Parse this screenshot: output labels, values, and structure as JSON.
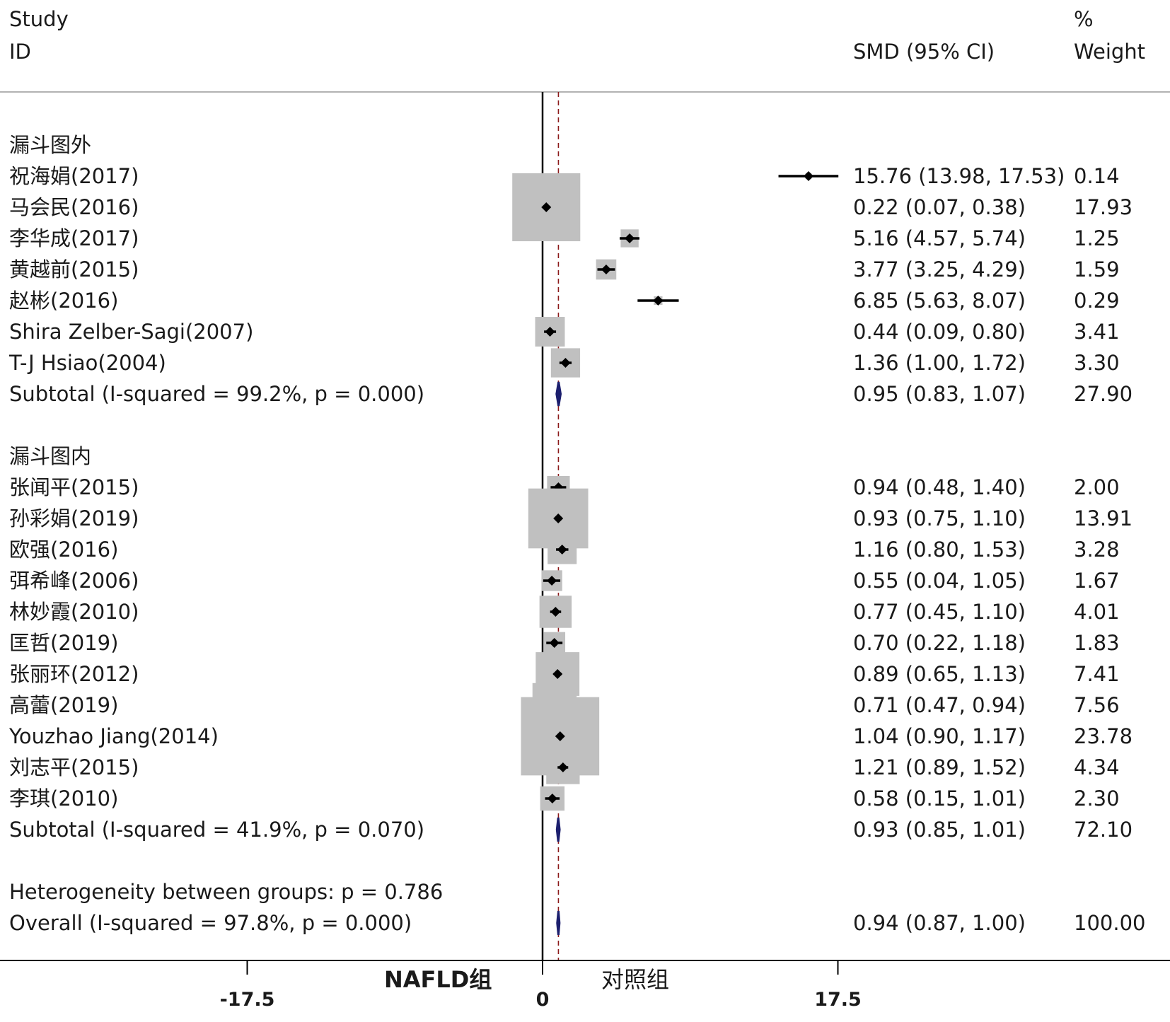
{
  "headers": {
    "study_line1": "Study",
    "study_line2": "ID",
    "smd": "SMD (95% CI)",
    "weight_line1": "%",
    "weight_line2": "Weight"
  },
  "chart_data": {
    "type": "forest",
    "measure": "SMD",
    "xaxis": {
      "ticks": [
        -17.5,
        0,
        17.5
      ],
      "tick_labels": [
        "-17.5",
        "0",
        "17.5"
      ],
      "left_label": "NAFLD组",
      "right_label": "对照组"
    },
    "overall_line": 0.94,
    "rows": [
      {
        "kind": "group",
        "label": "漏斗图外"
      },
      {
        "kind": "study",
        "label": "祝海娟(2017)",
        "est": 15.76,
        "lo": 13.98,
        "hi": 17.53,
        "ci": "15.76 (13.98, 17.53)",
        "weight": 0.14,
        "weight_text": "0.14"
      },
      {
        "kind": "study",
        "label": "马会民(2016)",
        "est": 0.22,
        "lo": 0.07,
        "hi": 0.38,
        "ci": "0.22 (0.07, 0.38)",
        "weight": 17.93,
        "weight_text": "17.93"
      },
      {
        "kind": "study",
        "label": "李华成(2017)",
        "est": 5.16,
        "lo": 4.57,
        "hi": 5.74,
        "ci": "5.16 (4.57, 5.74)",
        "weight": 1.25,
        "weight_text": "1.25"
      },
      {
        "kind": "study",
        "label": "黄越前(2015)",
        "est": 3.77,
        "lo": 3.25,
        "hi": 4.29,
        "ci": "3.77 (3.25, 4.29)",
        "weight": 1.59,
        "weight_text": "1.59"
      },
      {
        "kind": "study",
        "label": "赵彬(2016)",
        "est": 6.85,
        "lo": 5.63,
        "hi": 8.07,
        "ci": "6.85 (5.63, 8.07)",
        "weight": 0.29,
        "weight_text": "0.29"
      },
      {
        "kind": "study",
        "label": "Shira Zelber-Sagi(2007)",
        "est": 0.44,
        "lo": 0.09,
        "hi": 0.8,
        "ci": "0.44 (0.09, 0.80)",
        "weight": 3.41,
        "weight_text": "3.41"
      },
      {
        "kind": "study",
        "label": "T-J Hsiao(2004)",
        "est": 1.36,
        "lo": 1.0,
        "hi": 1.72,
        "ci": "1.36 (1.00, 1.72)",
        "weight": 3.3,
        "weight_text": "3.30"
      },
      {
        "kind": "subtotal",
        "label": "Subtotal  (I-squared = 99.2%, p = 0.000)",
        "est": 0.95,
        "lo": 0.83,
        "hi": 1.07,
        "ci": "0.95 (0.83, 1.07)",
        "weight": 27.9,
        "weight_text": "27.90"
      },
      {
        "kind": "blank"
      },
      {
        "kind": "group",
        "label": "漏斗图内"
      },
      {
        "kind": "study",
        "label": "张闻平(2015)",
        "est": 0.94,
        "lo": 0.48,
        "hi": 1.4,
        "ci": "0.94 (0.48, 1.40)",
        "weight": 2.0,
        "weight_text": "2.00"
      },
      {
        "kind": "study",
        "label": "孙彩娟(2019)",
        "est": 0.93,
        "lo": 0.75,
        "hi": 1.1,
        "ci": "0.93 (0.75, 1.10)",
        "weight": 13.91,
        "weight_text": "13.91"
      },
      {
        "kind": "study",
        "label": "欧强(2016)",
        "est": 1.16,
        "lo": 0.8,
        "hi": 1.53,
        "ci": "1.16 (0.80, 1.53)",
        "weight": 3.28,
        "weight_text": "3.28"
      },
      {
        "kind": "study",
        "label": "弭希峰(2006)",
        "est": 0.55,
        "lo": 0.04,
        "hi": 1.05,
        "ci": "0.55 (0.04, 1.05)",
        "weight": 1.67,
        "weight_text": "1.67"
      },
      {
        "kind": "study",
        "label": "林妙霞(2010)",
        "est": 0.77,
        "lo": 0.45,
        "hi": 1.1,
        "ci": "0.77 (0.45, 1.10)",
        "weight": 4.01,
        "weight_text": "4.01"
      },
      {
        "kind": "study",
        "label": "匡哲(2019)",
        "est": 0.7,
        "lo": 0.22,
        "hi": 1.18,
        "ci": "0.70 (0.22, 1.18)",
        "weight": 1.83,
        "weight_text": "1.83"
      },
      {
        "kind": "study",
        "label": "张丽环(2012)",
        "est": 0.89,
        "lo": 0.65,
        "hi": 1.13,
        "ci": "0.89 (0.65, 1.13)",
        "weight": 7.41,
        "weight_text": "7.41"
      },
      {
        "kind": "study",
        "label": "高蕾(2019)",
        "est": 0.71,
        "lo": 0.47,
        "hi": 0.94,
        "ci": "0.71 (0.47, 0.94)",
        "weight": 7.56,
        "weight_text": "7.56"
      },
      {
        "kind": "study",
        "label": "Youzhao Jiang(2014)",
        "est": 1.04,
        "lo": 0.9,
        "hi": 1.17,
        "ci": "1.04 (0.90, 1.17)",
        "weight": 23.78,
        "weight_text": "23.78"
      },
      {
        "kind": "study",
        "label": "刘志平(2015)",
        "est": 1.21,
        "lo": 0.89,
        "hi": 1.52,
        "ci": "1.21 (0.89, 1.52)",
        "weight": 4.34,
        "weight_text": "4.34"
      },
      {
        "kind": "study",
        "label": "李琪(2010)",
        "est": 0.58,
        "lo": 0.15,
        "hi": 1.01,
        "ci": "0.58 (0.15, 1.01)",
        "weight": 2.3,
        "weight_text": "2.30"
      },
      {
        "kind": "subtotal",
        "label": "Subtotal  (I-squared = 41.9%, p = 0.070)",
        "est": 0.93,
        "lo": 0.85,
        "hi": 1.01,
        "ci": "0.93 (0.85, 1.01)",
        "weight": 72.1,
        "weight_text": "72.10"
      },
      {
        "kind": "blank"
      },
      {
        "kind": "note",
        "label": "Heterogeneity between groups: p = 0.786"
      },
      {
        "kind": "overall",
        "label": "Overall  (I-squared = 97.8%, p = 0.000)",
        "est": 0.94,
        "lo": 0.87,
        "hi": 1.0,
        "ci": "0.94 (0.87, 1.00)",
        "weight": 100.0,
        "weight_text": "100.00"
      }
    ],
    "colors": {
      "box": "#c0c0c0",
      "line": "#000000",
      "pooled": "#1c1f6e",
      "dashed": "#8b1a1a"
    }
  }
}
